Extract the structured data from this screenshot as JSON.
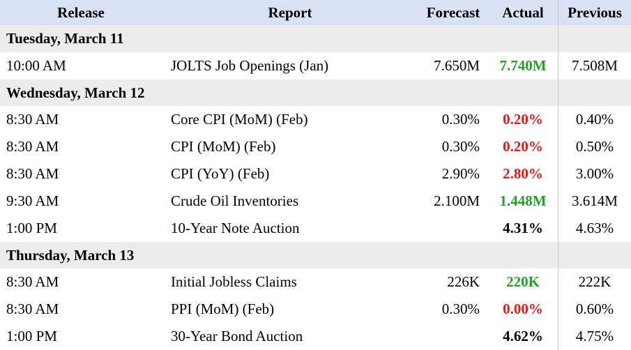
{
  "header": [
    "Release",
    "Report",
    "Forecast",
    "Actual",
    "Previous"
  ],
  "sections": [
    {
      "title": "Tuesday, March 11",
      "rows": [
        {
          "release": "10:00 AM",
          "report": "JOLTS Job Openings (Jan)",
          "forecast": "7.650M",
          "actual": "7.740M",
          "previous": "7.508M",
          "actual_color": "#2e9b2e"
        }
      ]
    },
    {
      "title": "Wednesday, March 12",
      "rows": [
        {
          "release": "8:30 AM",
          "report": "Core CPI (MoM) (Feb)",
          "forecast": "0.30%",
          "actual": "0.20%",
          "previous": "0.40%",
          "actual_color": "#e01b1b"
        },
        {
          "release": "8:30 AM",
          "report": "CPI (MoM) (Feb)",
          "forecast": "0.30%",
          "actual": "0.20%",
          "previous": "0.50%",
          "actual_color": "#e01b1b"
        },
        {
          "release": "8:30 AM",
          "report": "CPI (YoY) (Feb)",
          "forecast": "2.90%",
          "actual": "2.80%",
          "previous": "3.00%",
          "actual_color": "#e01b1b"
        },
        {
          "release": "9:30 AM",
          "report": "Crude Oil Inventories",
          "forecast": "2.100M",
          "actual": "1.448M",
          "previous": "3.614M",
          "actual_color": "#2e9b2e"
        },
        {
          "release": "1:00 PM",
          "report": "10-Year Note Auction",
          "forecast": null,
          "actual": "4.31%",
          "previous": "4.63%",
          "actual_color": "#000000"
        }
      ]
    },
    {
      "title": "Thursday, March 13",
      "rows": [
        {
          "release": "8:30 AM",
          "report": "Initial Jobless Claims",
          "forecast": "226K",
          "actual": "220K",
          "previous": "222K",
          "actual_color": "#2e9b2e"
        },
        {
          "release": "8:30 AM",
          "report": "PPI (MoM) (Feb)",
          "forecast": "0.30%",
          "actual": "0.00%",
          "previous": "0.60%",
          "actual_color": "#e01b1b"
        },
        {
          "release": "1:00 PM",
          "report": "30-Year Bond Auction",
          "forecast": null,
          "actual": "4.62%",
          "previous": "4.75%",
          "actual_color": "#000000"
        }
      ]
    }
  ]
}
